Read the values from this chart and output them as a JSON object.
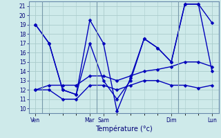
{
  "xlabel": "Température (°c)",
  "background_color": "#ceeaea",
  "grid_color": "#aacccc",
  "line_color": "#0000bb",
  "ylim": [
    9.5,
    21.5
  ],
  "yticks": [
    10,
    11,
    12,
    13,
    14,
    15,
    16,
    17,
    18,
    19,
    20,
    21
  ],
  "day_labels": [
    "Ven",
    "",
    "",
    "",
    "Mar",
    "Sam",
    "",
    "",
    "",
    "",
    "Dim",
    "",
    "",
    "Lun"
  ],
  "day_tick_labels": [
    "Ven",
    "Mar",
    "Sam",
    "Dim",
    "Lun"
  ],
  "day_tick_pos": [
    0,
    4,
    5,
    10,
    13
  ],
  "vline_pos": [
    0.5,
    4.5,
    10.5,
    13.5
  ],
  "total_points": 14,
  "series": [
    [
      19,
      17,
      12,
      11.5,
      19.5,
      17,
      9.7,
      13.3,
      17.5,
      16.5,
      15,
      21.2,
      21.2,
      19.2
    ],
    [
      19,
      17,
      12,
      11.5,
      17,
      13,
      11,
      13,
      17.5,
      16.5,
      15,
      21.2,
      21.2,
      14
    ],
    [
      12,
      12,
      11,
      11,
      12.5,
      12.5,
      12,
      12.5,
      13,
      13,
      12.5,
      12.5,
      12.2,
      12.5
    ],
    [
      12,
      12.5,
      12.5,
      12.5,
      13.5,
      13.5,
      13,
      13.5,
      14,
      14.2,
      14.5,
      15,
      15,
      14.5
    ]
  ],
  "marker_size": 2.5,
  "linewidth": 1.0,
  "tick_fontsize": 5.5,
  "xlabel_fontsize": 7
}
